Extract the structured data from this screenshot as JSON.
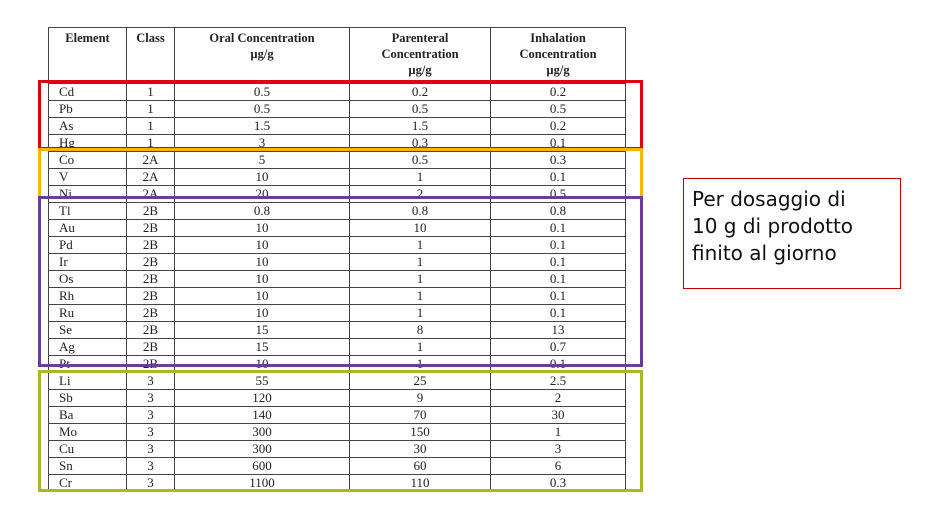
{
  "table": {
    "headers": [
      {
        "line1": "Element",
        "line2": "",
        "line3": ""
      },
      {
        "line1": "Class",
        "line2": "",
        "line3": ""
      },
      {
        "line1": "Oral Concentration",
        "line2": "µg/g",
        "line3": ""
      },
      {
        "line1": "Parenteral",
        "line2": "Concentration",
        "line3": "µg/g"
      },
      {
        "line1": "Inhalation",
        "line2": "Concentration",
        "line3": "µg/g"
      }
    ],
    "rows": [
      [
        "Cd",
        "1",
        "0.5",
        "0.2",
        "0.2"
      ],
      [
        "Pb",
        "1",
        "0.5",
        "0.5",
        "0.5"
      ],
      [
        "As",
        "1",
        "1.5",
        "1.5",
        "0.2"
      ],
      [
        "Hg",
        "1",
        "3",
        "0.3",
        "0.1"
      ],
      [
        "Co",
        "2A",
        "5",
        "0.5",
        "0.3"
      ],
      [
        "V",
        "2A",
        "10",
        "1",
        "0.1"
      ],
      [
        "Ni",
        "2A",
        "20",
        "2",
        "0.5"
      ],
      [
        "Tl",
        "2B",
        "0.8",
        "0.8",
        "0.8"
      ],
      [
        "Au",
        "2B",
        "10",
        "10",
        "0.1"
      ],
      [
        "Pd",
        "2B",
        "10",
        "1",
        "0.1"
      ],
      [
        "Ir",
        "2B",
        "10",
        "1",
        "0.1"
      ],
      [
        "Os",
        "2B",
        "10",
        "1",
        "0.1"
      ],
      [
        "Rh",
        "2B",
        "10",
        "1",
        "0.1"
      ],
      [
        "Ru",
        "2B",
        "10",
        "1",
        "0.1"
      ],
      [
        "Se",
        "2B",
        "15",
        "8",
        "13"
      ],
      [
        "Ag",
        "2B",
        "15",
        "1",
        "0.7"
      ],
      [
        "Pt",
        "2B",
        "10",
        "1",
        "0.1"
      ],
      [
        "Li",
        "3",
        "55",
        "25",
        "2.5"
      ],
      [
        "Sb",
        "3",
        "120",
        "9",
        "2"
      ],
      [
        "Ba",
        "3",
        "140",
        "70",
        "30"
      ],
      [
        "Mo",
        "3",
        "300",
        "150",
        "1"
      ],
      [
        "Cu",
        "3",
        "300",
        "30",
        "3"
      ],
      [
        "Sn",
        "3",
        "600",
        "60",
        "6"
      ],
      [
        "Cr",
        "3",
        "1100",
        "110",
        "0.3"
      ]
    ]
  },
  "highlights": [
    {
      "name": "class-1-highlight",
      "color": "#e0000a"
    },
    {
      "name": "class-2a-highlight",
      "color": "#f5b800"
    },
    {
      "name": "class-2b-highlight",
      "color": "#6a3d9a"
    },
    {
      "name": "class-3-highlight",
      "color": "#a8b82a"
    }
  ],
  "note": {
    "line1": "Per dosaggio di",
    "line2": "10 g di prodotto",
    "line3": "finito al giorno",
    "border_color": "#c00000"
  }
}
